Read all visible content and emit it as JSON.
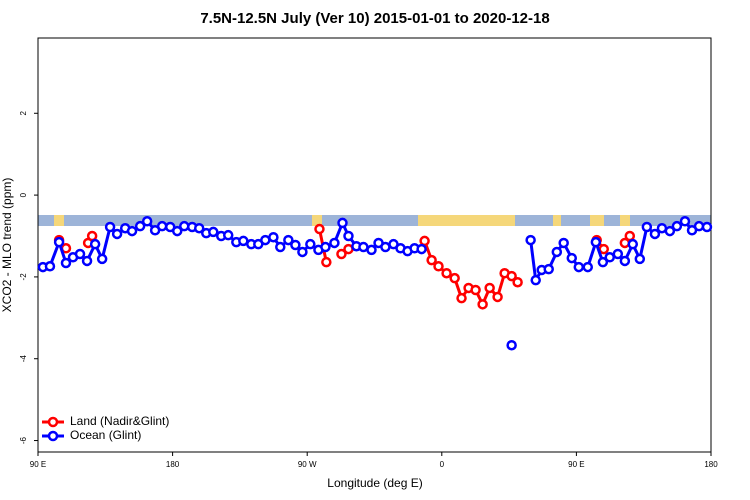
{
  "chart_data": {
    "type": "line",
    "title": "7.5N-12.5N July (Ver 10)   2015-01-01 to 2020-12-18",
    "xlabel": "Longitude (deg E)",
    "ylabel": "XCO2 - MLO trend (ppm)",
    "xlim": [
      90,
      540
    ],
    "ylim": [
      -6.28,
      3.84
    ],
    "xticks": [
      {
        "value": 90,
        "label": "90 E"
      },
      180,
      {
        "value": 270,
        "label": "90 W"
      },
      {
        "value": 360,
        "label": "0"
      },
      {
        "value": 450,
        "label": "90 E"
      },
      {
        "value": 540,
        "label": "180"
      }
    ],
    "yticks": [
      -6,
      -4,
      -2,
      0,
      2
    ],
    "legend": "bottom-left",
    "series": [
      {
        "name": "Land (Nadir&Glint)",
        "color": "#ff0000",
        "x": [
          104.1,
          108.7,
          null,
          123.5,
          126.2,
          null,
          278.2,
          282.8,
          null,
          292.9,
          297.6,
          null,
          348.5,
          353.2,
          357.8,
          363.2,
          368.6,
          373.2,
          377.9,
          382.6,
          387.3,
          392.0,
          397.3,
          402.0,
          406.7,
          410.7,
          null,
          463.6,
          468.3,
          null,
          482.4,
          485.7
        ],
        "values": [
          -1.1,
          -1.3,
          null,
          -1.17,
          -1.0,
          null,
          -0.83,
          -1.64,
          null,
          -1.44,
          -1.32,
          null,
          -1.12,
          -1.59,
          -1.74,
          -1.91,
          -2.03,
          -2.52,
          -2.27,
          -2.32,
          -2.67,
          -2.27,
          -2.49,
          -1.91,
          -1.98,
          -2.13,
          null,
          -1.1,
          -1.32,
          null,
          -1.17,
          -1.0
        ]
      },
      {
        "name": "Ocean (Glint)",
        "color": "#0000ff",
        "x": [
          93.3,
          98.0,
          104.1,
          108.7,
          113.4,
          118.1,
          122.8,
          128.2,
          132.9,
          138.2,
          142.9,
          148.3,
          152.9,
          158.3,
          163.0,
          168.3,
          173.0,
          178.4,
          183.1,
          187.8,
          193.1,
          197.8,
          202.5,
          207.2,
          212.5,
          217.2,
          222.6,
          227.3,
          232.6,
          237.3,
          242.0,
          247.4,
          252.0,
          257.4,
          262.1,
          266.8,
          272.1,
          277.5,
          282.2,
          288.2,
          293.6,
          297.6,
          302.9,
          307.6,
          313.0,
          317.7,
          322.3,
          327.7,
          332.4,
          337.1,
          341.8,
          346.5,
          null,
          406.7,
          null,
          419.4,
          422.8,
          426.8,
          431.5,
          436.9,
          441.5,
          446.9,
          451.6,
          457.6,
          463.0,
          467.7,
          472.3,
          477.7,
          482.4,
          487.7,
          492.4,
          497.1,
          502.5,
          507.2,
          512.5,
          517.2,
          522.6,
          527.3,
          532.0,
          537.3
        ],
        "values": [
          -1.76,
          -1.74,
          -1.15,
          -1.66,
          -1.52,
          -1.44,
          -1.61,
          -1.2,
          -1.56,
          -0.78,
          -0.95,
          -0.81,
          -0.88,
          -0.76,
          -0.64,
          -0.86,
          -0.76,
          -0.78,
          -0.88,
          -0.76,
          -0.78,
          -0.81,
          -0.93,
          -0.9,
          -1.0,
          -0.98,
          -1.15,
          -1.12,
          -1.2,
          -1.2,
          -1.1,
          -1.03,
          -1.27,
          -1.1,
          -1.22,
          -1.39,
          -1.2,
          -1.34,
          -1.27,
          -1.17,
          -0.68,
          -1.0,
          -1.25,
          -1.27,
          -1.34,
          -1.17,
          -1.27,
          -1.2,
          -1.3,
          -1.37,
          -1.3,
          -1.32,
          null,
          -3.67,
          null,
          -1.1,
          -2.08,
          -1.83,
          -1.81,
          -1.39,
          -1.17,
          -1.54,
          -1.76,
          -1.76,
          -1.15,
          -1.64,
          -1.52,
          -1.44,
          -1.61,
          -1.2,
          -1.56,
          -0.78,
          -0.95,
          -0.81,
          -0.88,
          -0.76,
          -0.64,
          -0.86,
          -0.76,
          -0.78
        ]
      }
    ]
  }
}
